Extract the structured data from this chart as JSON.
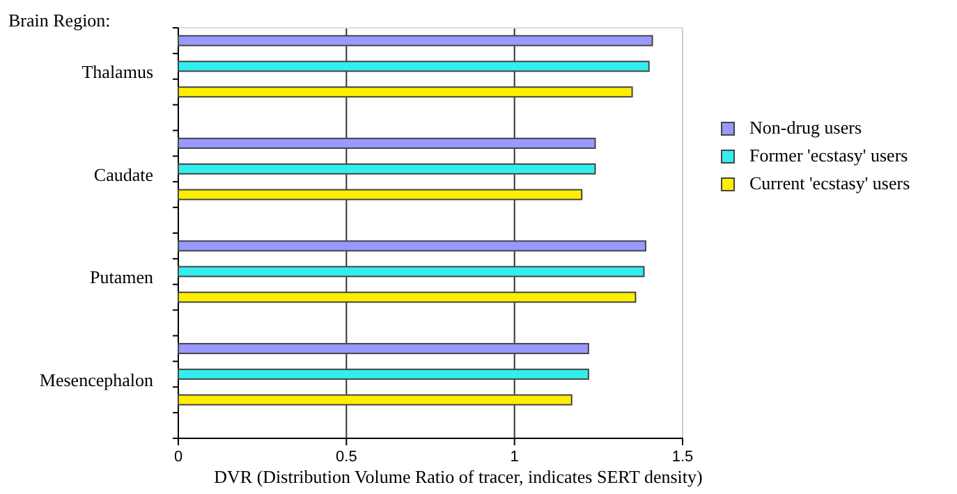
{
  "chart_data": {
    "type": "bar",
    "orientation": "horizontal",
    "ylabel": "Brain Region:",
    "xlabel": "DVR (Distribution Volume Ratio of tracer, indicates SERT density)",
    "categories": [
      "Thalamus",
      "Caudate",
      "Putamen",
      "Mesencephalon"
    ],
    "series": [
      {
        "name": "Non-drug users",
        "color": "#9999ff",
        "values": [
          1.41,
          1.24,
          1.39,
          1.22
        ]
      },
      {
        "name": "Former 'ecstasy' users",
        "color": "#33eeee",
        "values": [
          1.4,
          1.24,
          1.385,
          1.22
        ]
      },
      {
        "name": "Current 'ecstasy' users",
        "color": "#ffee00",
        "values": [
          1.35,
          1.2,
          1.36,
          1.17
        ]
      }
    ],
    "xlim": [
      0,
      1.5
    ],
    "xticks": [
      0,
      0.5,
      1,
      1.5
    ],
    "grid": "x",
    "legend": "right"
  }
}
